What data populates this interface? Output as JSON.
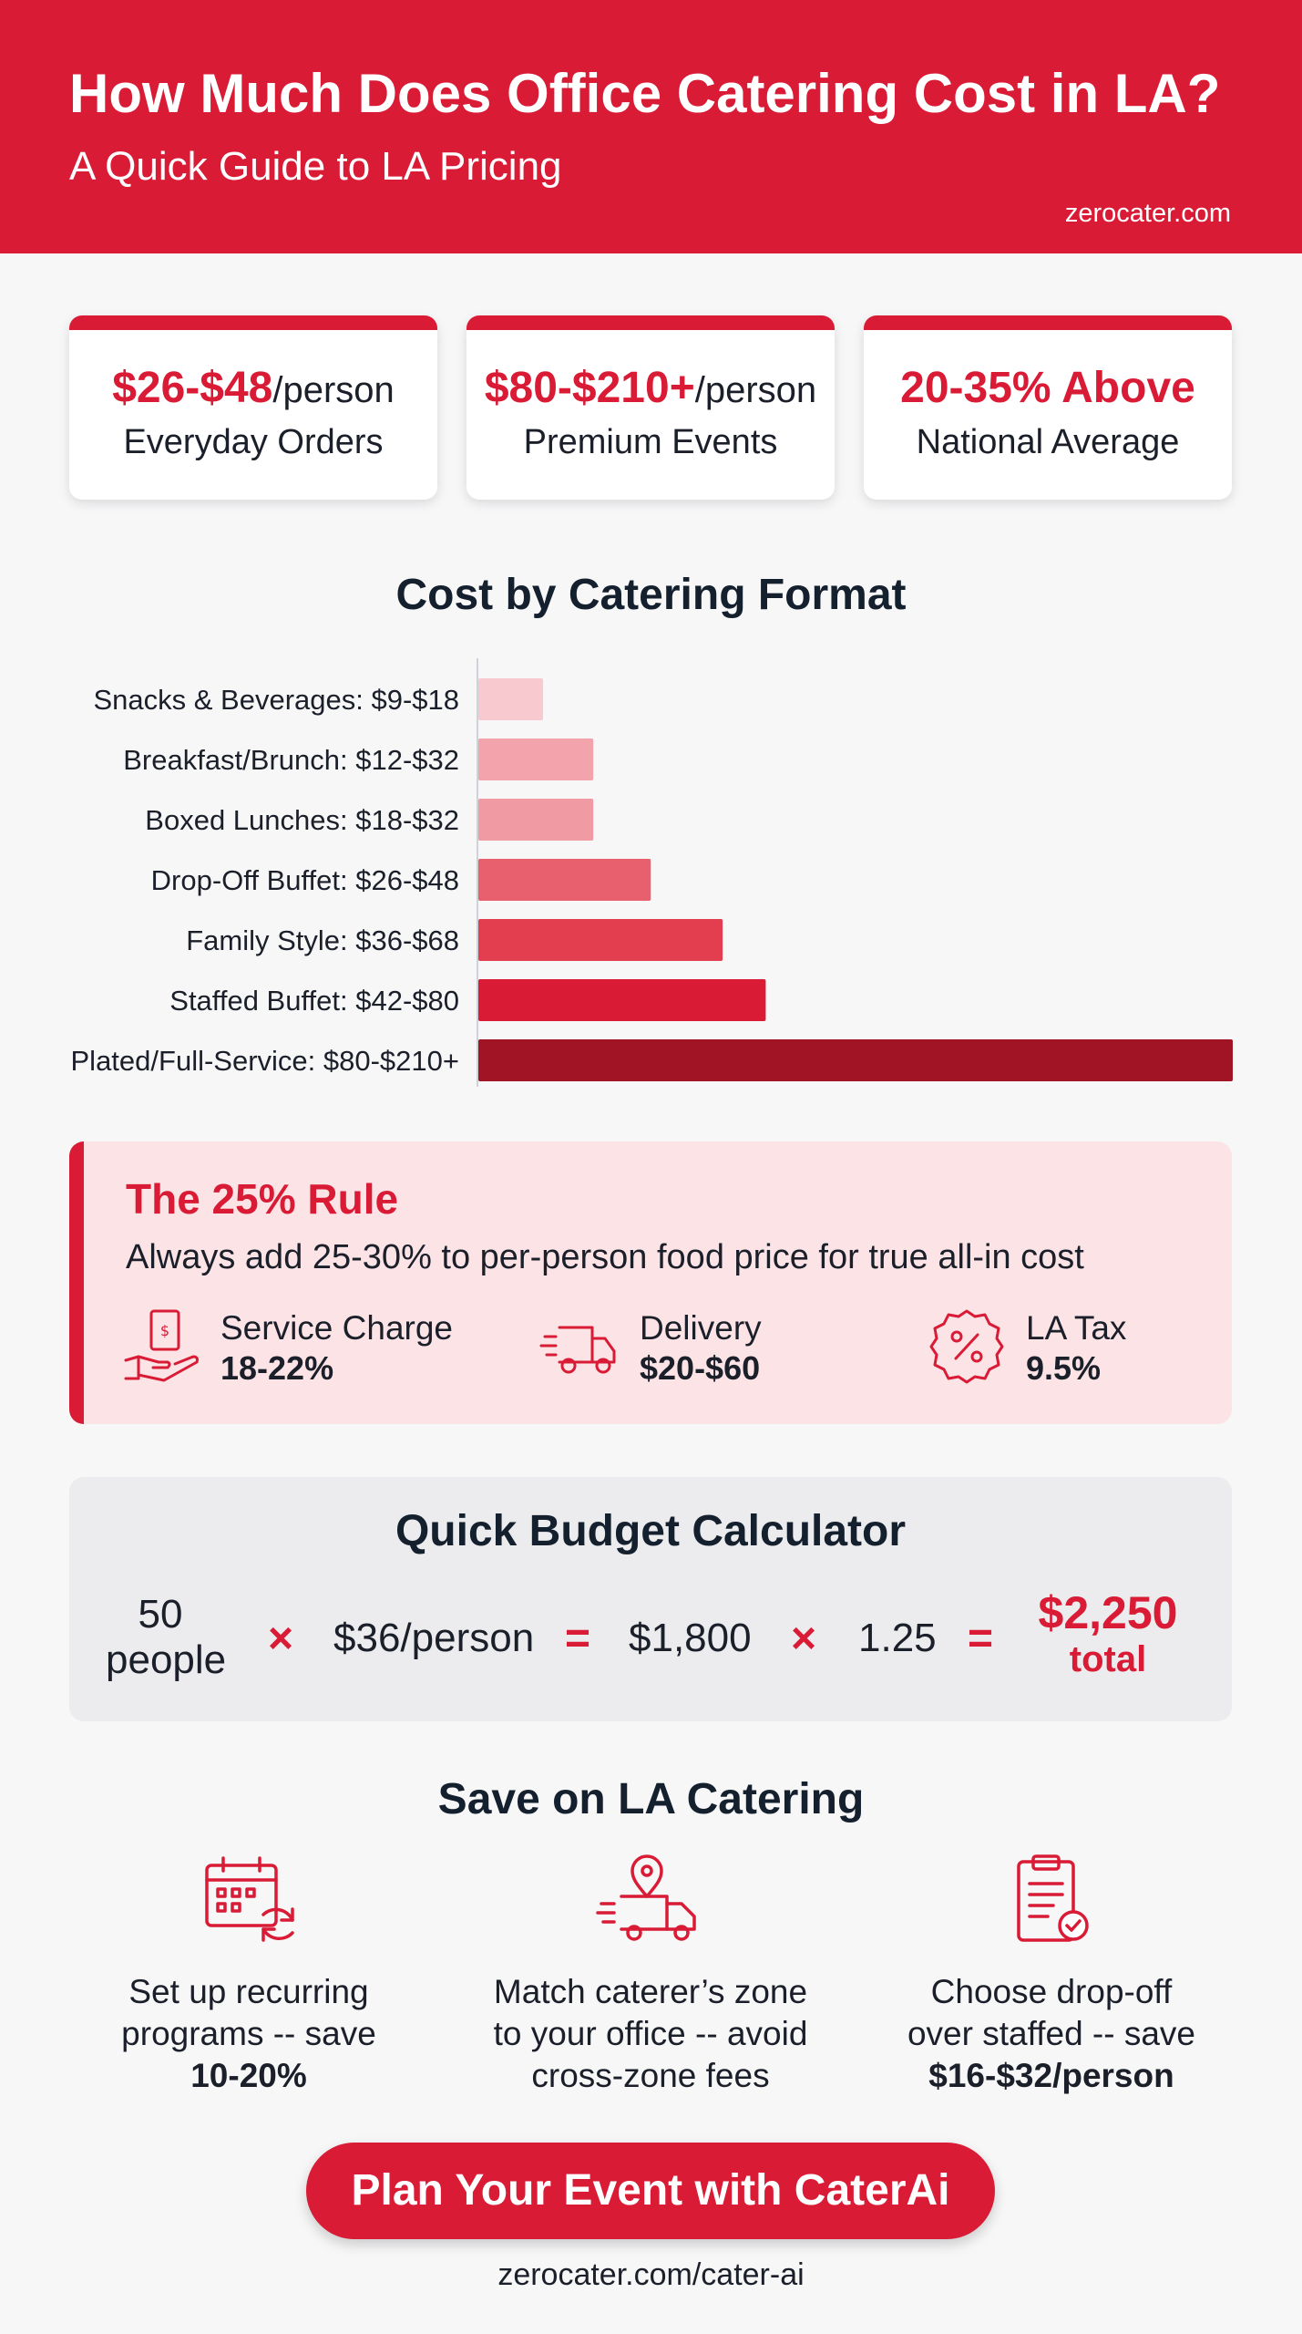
{
  "header": {
    "title": "How Much Does Office Catering Cost in LA?",
    "subtitle": "A Quick Guide to LA Pricing",
    "site": "zerocater.com"
  },
  "stats": [
    {
      "highlight": "$26-$48",
      "unit": "/person",
      "label": "Everyday Orders"
    },
    {
      "highlight": "$80-$210+",
      "unit": "/person",
      "label": "Premium Events"
    },
    {
      "highlight": "20-35% Above",
      "unit": "",
      "label": "National Average"
    }
  ],
  "chart_data": {
    "type": "bar",
    "orientation": "horizontal",
    "title": "Cost by Catering Format",
    "categories": [
      "Snacks & Beverages: $9-$18",
      "Breakfast/Brunch: $12-$32",
      "Boxed Lunches: $18-$32",
      "Drop-Off Buffet: $26-$48",
      "Family Style: $36-$68",
      "Staffed Buffet: $42-$80",
      "Plated/Full-Service: $80-$210+"
    ],
    "values": [
      18,
      32,
      32,
      48,
      68,
      80,
      210
    ],
    "unit": "$ per person (upper end of range)",
    "xlim": [
      0,
      210
    ],
    "colors": [
      "#f8c9ce",
      "#f3a3ac",
      "#f09aa4",
      "#e85f6e",
      "#e33e50",
      "#d91b36",
      "#a01426"
    ],
    "grid": false,
    "legend": "none"
  },
  "rule": {
    "title": "The 25% Rule",
    "description": "Always add 25-30% to per-person food price for true all-in cost",
    "items": [
      {
        "icon": "hand-money-icon",
        "label": "Service Charge",
        "value": "18-22%"
      },
      {
        "icon": "delivery-truck-icon",
        "label": "Delivery",
        "value": "$20-$60"
      },
      {
        "icon": "percent-badge-icon",
        "label": "LA Tax",
        "value": "9.5%"
      }
    ]
  },
  "calculator": {
    "title": "Quick Budget Calculator",
    "people_count": "50",
    "people_label": "people",
    "times1": "×",
    "price": "$36/person",
    "equals1": "=",
    "subtotal": "$1,800",
    "times2": "×",
    "multiplier": "1.25",
    "equals2": "=",
    "total": "$2,250",
    "total_label": "total"
  },
  "save": {
    "title": "Save on LA Catering",
    "tips": [
      {
        "icon": "recurring-calendar-icon",
        "line1": "Set up recurring",
        "line2": "programs -- save",
        "bold": "10-20%"
      },
      {
        "icon": "truck-location-icon",
        "line1": "Match caterer’s zone",
        "line2": "to your office -- avoid",
        "line3": "cross-zone fees"
      },
      {
        "icon": "clipboard-check-icon",
        "line1": "Choose drop-off",
        "line2": "over staffed -- save",
        "bold": "$16-$32/person"
      }
    ]
  },
  "cta": {
    "label": "Plan Your Event with CaterAi"
  },
  "footer": {
    "url": "zerocater.com/cater-ai"
  },
  "colors": {
    "brand_red": "#d91b36",
    "light_pink": "#fce4e6",
    "dark_text": "#15202e"
  }
}
